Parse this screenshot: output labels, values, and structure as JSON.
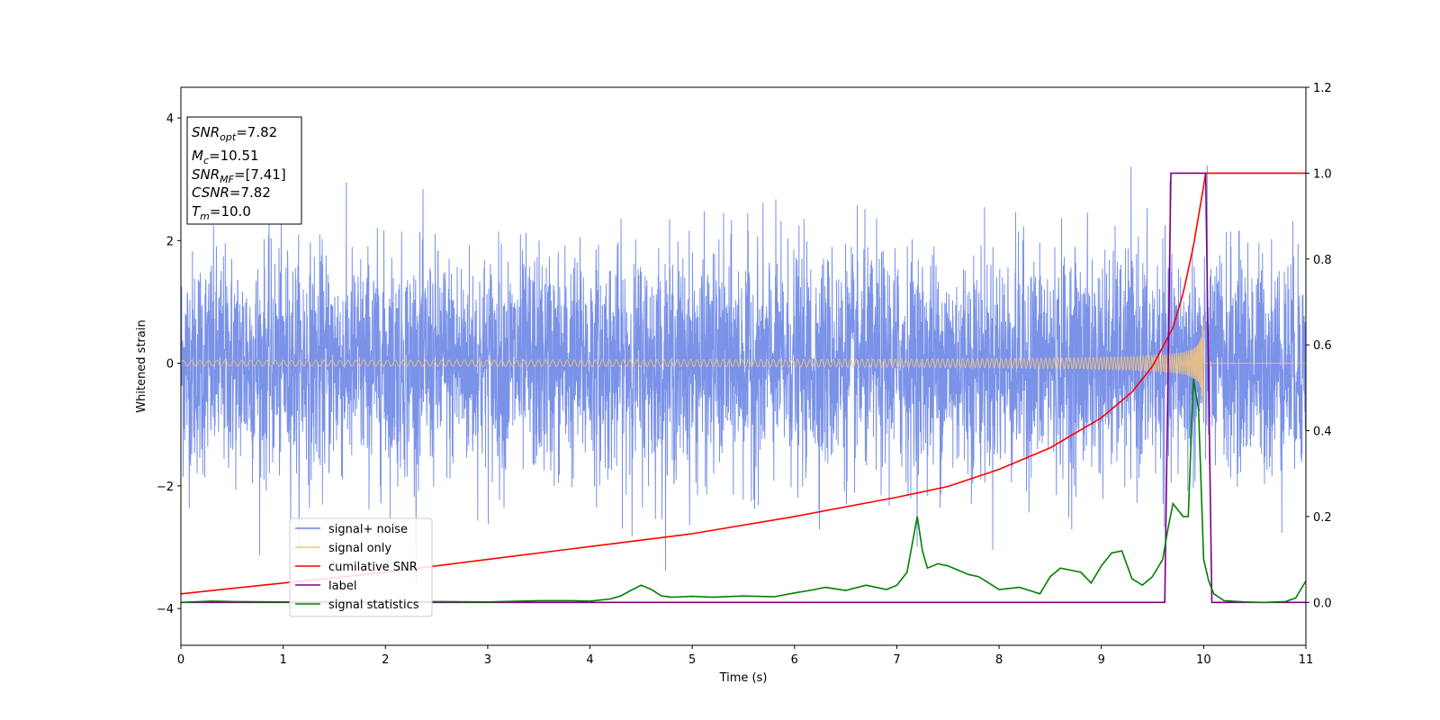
{
  "chart_data": {
    "type": "line",
    "xlabel": "Time (s)",
    "ylabel": "Whitened strain",
    "xlim": [
      0,
      11
    ],
    "ylim_left": [
      -4.6,
      4.5
    ],
    "ylim_right": [
      -0.1,
      1.2
    ],
    "xticks": [
      "0",
      "1",
      "2",
      "3",
      "4",
      "5",
      "6",
      "7",
      "8",
      "9",
      "10",
      "11"
    ],
    "yticks_left": [
      "4",
      "2",
      "0",
      "−2",
      "−4"
    ],
    "yticks_right": [
      "1.2",
      "1.0",
      "0.8",
      "0.6",
      "0.4",
      "0.2",
      "0.0"
    ],
    "info_box": {
      "snr_opt": {
        "name": "SNR",
        "sub": "opt",
        "value": "=7.82"
      },
      "mc": {
        "name": "M",
        "sub": "c",
        "value": "=10.51"
      },
      "snr_mf": {
        "name": "SNR",
        "sub": "MF",
        "value": "=[7.41]"
      },
      "csnr": {
        "name": "CSNR",
        "sub": "",
        "value": "=7.82"
      },
      "tm": {
        "name": "T",
        "sub": "m",
        "value": "=10.0"
      }
    },
    "series": [
      {
        "name": "signal+ noise",
        "color": "#6b86e6",
        "axis": "left",
        "kind": "noise",
        "std": 0.9,
        "xrange": [
          0,
          11
        ]
      },
      {
        "name": "signal only",
        "color": "#f5c37a",
        "axis": "left",
        "kind": "chirp",
        "merger_time": 10.0,
        "peak_amplitude": 0.95
      },
      {
        "name": "cumilative SNR",
        "color": "#ff0000",
        "axis": "right",
        "x": [
          0,
          1,
          2,
          3,
          4,
          5,
          6,
          7,
          7.5,
          8,
          8.5,
          9,
          9.3,
          9.5,
          9.7,
          9.8,
          9.9,
          9.95,
          10.0,
          10.02,
          11
        ],
        "y": [
          0.02,
          0.045,
          0.07,
          0.1,
          0.13,
          0.16,
          0.2,
          0.245,
          0.27,
          0.31,
          0.36,
          0.43,
          0.49,
          0.55,
          0.64,
          0.72,
          0.83,
          0.9,
          0.97,
          1.0,
          1.0
        ]
      },
      {
        "name": "label",
        "color": "#800080",
        "axis": "right",
        "x": [
          0,
          9.62,
          9.68,
          10.02,
          10.08,
          11
        ],
        "y": [
          0,
          0,
          1,
          1,
          0,
          0
        ]
      },
      {
        "name": "signal statistics",
        "color": "#008000",
        "axis": "right",
        "x": [
          0,
          0.3,
          0.5,
          1,
          1.5,
          2,
          2.5,
          3,
          3.5,
          3.8,
          4.0,
          4.2,
          4.3,
          4.4,
          4.5,
          4.6,
          4.7,
          4.8,
          5.0,
          5.2,
          5.5,
          5.8,
          6.0,
          6.2,
          6.3,
          6.5,
          6.7,
          6.9,
          7.0,
          7.1,
          7.2,
          7.25,
          7.3,
          7.4,
          7.5,
          7.6,
          7.7,
          7.8,
          7.9,
          8.0,
          8.2,
          8.4,
          8.5,
          8.6,
          8.7,
          8.8,
          8.9,
          9.0,
          9.1,
          9.2,
          9.3,
          9.4,
          9.5,
          9.6,
          9.65,
          9.7,
          9.8,
          9.85,
          9.9,
          9.95,
          10.0,
          10.05,
          10.1,
          10.2,
          10.4,
          10.6,
          10.8,
          10.9,
          11.0
        ],
        "y": [
          0.0,
          0.003,
          0.002,
          0.001,
          0.002,
          0.001,
          0.002,
          0.001,
          0.004,
          0.004,
          0.003,
          0.008,
          0.015,
          0.028,
          0.04,
          0.03,
          0.015,
          0.012,
          0.014,
          0.012,
          0.015,
          0.013,
          0.022,
          0.03,
          0.035,
          0.028,
          0.04,
          0.03,
          0.04,
          0.07,
          0.2,
          0.12,
          0.08,
          0.09,
          0.085,
          0.075,
          0.065,
          0.06,
          0.045,
          0.03,
          0.035,
          0.02,
          0.06,
          0.08,
          0.075,
          0.07,
          0.045,
          0.085,
          0.115,
          0.12,
          0.055,
          0.04,
          0.06,
          0.1,
          0.17,
          0.23,
          0.2,
          0.2,
          0.52,
          0.45,
          0.1,
          0.05,
          0.02,
          0.004,
          0.001,
          0.0,
          0.002,
          0.01,
          0.05
        ]
      }
    ],
    "legend": {
      "position": "lower left"
    },
    "grid": false
  }
}
